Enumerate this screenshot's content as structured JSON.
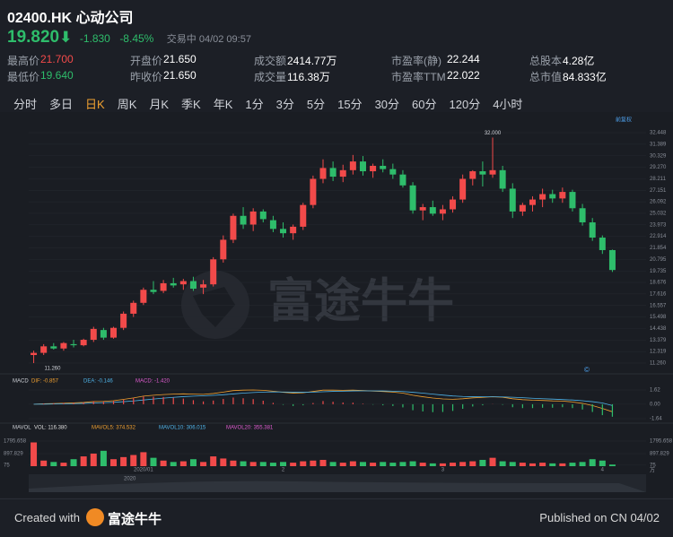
{
  "header": {
    "ticker": "02400.HK",
    "name": "心动公司",
    "price": "19.820",
    "arrow": "⬇",
    "change": "-1.830",
    "change_pct": "-8.45%",
    "status": "交易中 04/02 09:57",
    "color": "#2ebd6b"
  },
  "stats": [
    {
      "label": "最高价",
      "value": "21.700",
      "color": "#f24a4a"
    },
    {
      "label": "开盘价",
      "value": "21.650"
    },
    {
      "label": "成交额",
      "value": "2414.77万"
    },
    {
      "label": "市盈率(静)",
      "value": "22.244"
    },
    {
      "label": "总股本",
      "value": "4.28亿"
    },
    {
      "label": "最低价",
      "value": "19.640",
      "color": "#2ebd6b"
    },
    {
      "label": "昨收价",
      "value": "21.650"
    },
    {
      "label": "成交量",
      "value": "116.38万"
    },
    {
      "label": "市盈率TTM",
      "value": "22.022"
    },
    {
      "label": "总市值",
      "value": "84.833亿"
    }
  ],
  "periods": [
    "分时",
    "多日",
    "日K",
    "周K",
    "月K",
    "季K",
    "年K",
    "1分",
    "3分",
    "5分",
    "15分",
    "30分",
    "60分",
    "120分",
    "4小时"
  ],
  "active_period": 2,
  "adjust": "前复权",
  "watermark": "富途牛牛",
  "navigator_label": "2020",
  "footer": {
    "created": "Created with",
    "brand": "富途牛牛",
    "published": "Published on CN 04/02"
  },
  "chart_data": [
    {
      "type": "candlestick",
      "up_color": "#f24a4a",
      "down_color": "#2ebd6b",
      "categories": [
        null,
        null,
        null,
        null,
        null,
        null,
        null,
        null,
        null,
        null,
        null,
        "2020/01",
        null,
        null,
        null,
        null,
        null,
        null,
        null,
        null,
        null,
        null,
        null,
        null,
        null,
        "2",
        null,
        null,
        null,
        null,
        null,
        null,
        null,
        null,
        null,
        null,
        null,
        null,
        null,
        null,
        null,
        "3",
        null,
        null,
        null,
        null,
        null,
        null,
        null,
        null,
        null,
        null,
        null,
        null,
        null,
        null,
        null,
        "4",
        null
      ],
      "open": [
        12.0,
        12.2,
        12.8,
        12.6,
        13.0,
        12.9,
        13.4,
        14.3,
        13.6,
        14.5,
        15.8,
        16.8,
        18.0,
        17.9,
        18.6,
        18.5,
        18.8,
        18.2,
        18.5,
        20.8,
        22.6,
        24.8,
        24.0,
        25.2,
        24.4,
        23.6,
        23.2,
        23.8,
        25.8,
        28.2,
        29.2,
        28.4,
        29.0,
        29.8,
        28.9,
        29.4,
        29.1,
        28.6,
        27.6,
        25.3,
        25.6,
        25.0,
        25.4,
        26.3,
        28.2,
        28.9,
        28.6,
        29.0,
        27.3,
        25.2,
        25.8,
        26.3,
        26.8,
        26.4,
        27.0,
        25.5,
        24.2,
        22.8,
        21.65
      ],
      "high": [
        12.4,
        13.0,
        13.1,
        13.2,
        13.4,
        13.5,
        14.6,
        14.5,
        14.6,
        16.0,
        17.0,
        18.2,
        18.8,
        18.9,
        19.1,
        19.0,
        19.2,
        18.9,
        21.0,
        23.0,
        25.0,
        25.6,
        25.5,
        25.4,
        24.8,
        24.2,
        24.0,
        26.0,
        28.5,
        30.0,
        29.8,
        29.5,
        30.4,
        30.3,
        29.6,
        30.0,
        29.6,
        29.0,
        27.9,
        25.9,
        26.2,
        25.8,
        26.6,
        28.6,
        29.0,
        29.8,
        32.0,
        29.4,
        27.8,
        26.0,
        26.6,
        27.3,
        27.2,
        27.4,
        27.2,
        25.9,
        24.6,
        23.0,
        21.7
      ],
      "low": [
        11.26,
        12.0,
        12.5,
        12.4,
        12.7,
        12.8,
        13.2,
        13.4,
        13.5,
        14.3,
        15.5,
        16.6,
        17.6,
        17.7,
        18.2,
        18.0,
        17.9,
        17.6,
        18.3,
        20.5,
        22.3,
        23.6,
        23.4,
        24.2,
        23.3,
        22.8,
        22.6,
        23.5,
        25.5,
        27.8,
        28.0,
        27.9,
        28.6,
        28.5,
        28.3,
        28.8,
        28.2,
        27.4,
        25.0,
        24.4,
        24.8,
        24.4,
        25.1,
        26.0,
        27.6,
        27.5,
        28.3,
        27.0,
        24.6,
        24.8,
        25.2,
        25.6,
        26.0,
        26.0,
        25.2,
        23.9,
        22.5,
        21.3,
        19.64
      ],
      "close": [
        12.2,
        12.8,
        12.6,
        13.1,
        12.9,
        13.4,
        14.4,
        13.6,
        14.5,
        15.8,
        16.8,
        18.0,
        17.8,
        18.6,
        18.4,
        18.8,
        18.1,
        18.5,
        20.8,
        22.6,
        24.8,
        24.0,
        25.2,
        24.5,
        23.6,
        23.2,
        23.8,
        25.8,
        28.2,
        29.2,
        28.4,
        29.0,
        29.8,
        28.9,
        29.4,
        29.1,
        28.6,
        27.6,
        25.3,
        25.6,
        25.0,
        25.4,
        26.3,
        28.2,
        28.9,
        28.6,
        29.0,
        27.3,
        25.2,
        25.8,
        26.3,
        26.8,
        26.4,
        27.0,
        25.5,
        24.2,
        22.8,
        21.65,
        19.82
      ],
      "ylim": [
        11.26,
        32.448
      ],
      "yticks": [
        32.448,
        31.389,
        30.329,
        {
          "value": 29.27,
          "label": "29.270"
        },
        28.211,
        27.151,
        26.092,
        25.032,
        23.973,
        22.914,
        21.854,
        20.795,
        19.735,
        18.676,
        17.616,
        16.557,
        15.498,
        14.438,
        13.379,
        12.319,
        {
          "value": 11.26,
          "label": "11.260"
        }
      ],
      "max_label": "32.000",
      "min_label": "11.260"
    },
    {
      "type": "macd",
      "title": "MACD",
      "series": [
        {
          "name": "DIF: -0.857",
          "color": "#f0a030",
          "values": [
            0,
            0.05,
            0.08,
            0.12,
            0.15,
            0.2,
            0.3,
            0.32,
            0.4,
            0.55,
            0.72,
            0.92,
            1.02,
            1.1,
            1.15,
            1.18,
            1.15,
            1.12,
            1.22,
            1.38,
            1.55,
            1.6,
            1.62,
            1.58,
            1.48,
            1.36,
            1.27,
            1.3,
            1.45,
            1.6,
            1.6,
            1.58,
            1.6,
            1.55,
            1.5,
            1.45,
            1.38,
            1.26,
            1.02,
            0.85,
            0.7,
            0.6,
            0.56,
            0.62,
            0.72,
            0.78,
            0.85,
            0.8,
            0.62,
            0.52,
            0.46,
            0.43,
            0.38,
            0.36,
            0.26,
            0.1,
            -0.15,
            -0.48,
            -0.857
          ]
        },
        {
          "name": "DEA: -0.146",
          "color": "#4fb3e8",
          "values": [
            0,
            0.01,
            0.03,
            0.05,
            0.07,
            0.1,
            0.14,
            0.18,
            0.22,
            0.29,
            0.37,
            0.48,
            0.59,
            0.69,
            0.78,
            0.86,
            0.92,
            0.96,
            1.01,
            1.08,
            1.17,
            1.26,
            1.33,
            1.38,
            1.4,
            1.39,
            1.37,
            1.36,
            1.38,
            1.42,
            1.46,
            1.48,
            1.51,
            1.52,
            1.52,
            1.51,
            1.48,
            1.44,
            1.36,
            1.26,
            1.15,
            1.04,
            0.94,
            0.88,
            0.85,
            0.84,
            0.84,
            0.83,
            0.79,
            0.74,
            0.68,
            0.63,
            0.58,
            0.53,
            0.48,
            0.4,
            0.29,
            0.14,
            -0.146
          ]
        },
        {
          "name": "MACD: -1.420",
          "color": "#e05cd0",
          "values": [
            0,
            0.08,
            0.1,
            0.14,
            0.16,
            0.2,
            0.32,
            0.28,
            0.36,
            0.52,
            0.7,
            0.88,
            0.86,
            0.82,
            0.74,
            0.64,
            0.46,
            0.32,
            0.42,
            0.6,
            0.76,
            0.68,
            0.58,
            0.4,
            0.16,
            -0.06,
            -0.2,
            -0.12,
            0.14,
            0.36,
            0.28,
            0.2,
            0.18,
            0.06,
            -0.04,
            -0.12,
            -0.2,
            -0.36,
            -0.68,
            -0.82,
            -0.9,
            -0.88,
            -0.76,
            -0.52,
            -0.26,
            -0.12,
            0.02,
            -0.06,
            -0.34,
            -0.44,
            -0.44,
            -0.4,
            -0.4,
            -0.34,
            -0.44,
            -0.6,
            -0.88,
            -1.24,
            -1.42
          ]
        }
      ],
      "ylim": [
        -1.64,
        1.62
      ],
      "yticks": [
        1.62,
        {
          "value": 0,
          "label": "0.00"
        },
        -1.64
      ]
    },
    {
      "type": "volume",
      "title": "MAVOL",
      "unit": "万",
      "series": [
        {
          "name": "VOL: 116.380",
          "color": "#dddddd",
          "values": [
            1700,
            400,
            300,
            250,
            500,
            700,
            900,
            1100,
            500,
            650,
            800,
            1000,
            600,
            400,
            300,
            350,
            500,
            300,
            700,
            550,
            400,
            350,
            300,
            300,
            250,
            300,
            250,
            350,
            400,
            450,
            300,
            250,
            350,
            300,
            250,
            300,
            250,
            300,
            350,
            250,
            200,
            200,
            250,
            300,
            350,
            450,
            600,
            350,
            300,
            250,
            200,
            250,
            200,
            200,
            250,
            300,
            500,
            400,
            116.38
          ]
        }
      ],
      "indicators": [
        {
          "name": "MAVOL5: 374.532",
          "color": "#f0a030"
        },
        {
          "name": "MAVOL10: 306.015",
          "color": "#4fb3e8"
        },
        {
          "name": "MAVOL20: 355.381",
          "color": "#e05cd0"
        }
      ],
      "ylim": [
        0,
        1795.658
      ],
      "yticks": [
        1795.658,
        897.829,
        75
      ]
    }
  ]
}
